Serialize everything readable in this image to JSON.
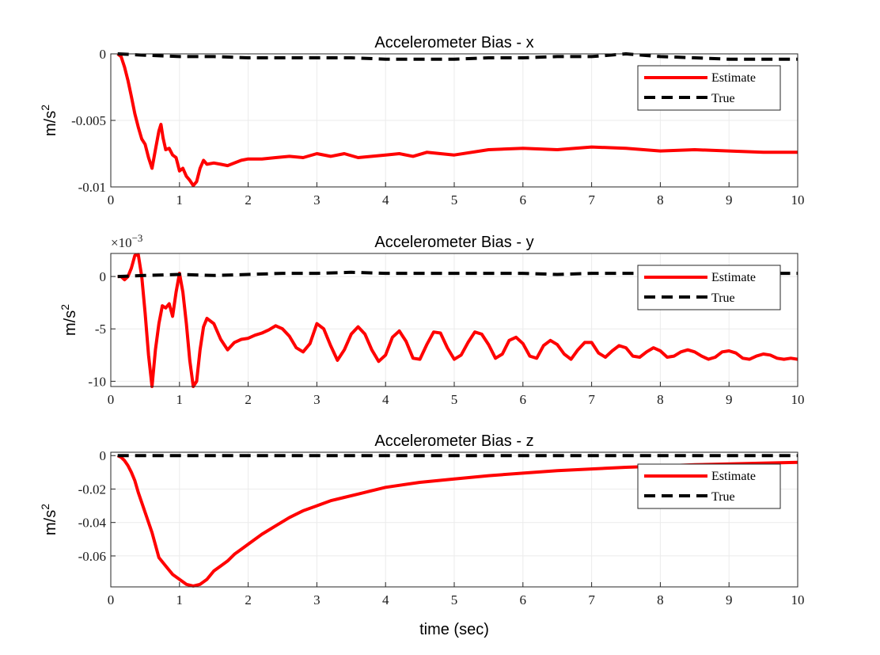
{
  "chart_data": [
    {
      "type": "line",
      "title": "Accelerometer Bias - x",
      "xlabel": "",
      "ylabel": "m/s",
      "ylabel_sup": "2",
      "xlim": [
        0,
        10
      ],
      "ylim": [
        -0.01,
        0
      ],
      "xticks": [
        0,
        1,
        2,
        3,
        4,
        5,
        6,
        7,
        8,
        9,
        10
      ],
      "xtick_labels": [
        "0",
        "1",
        "2",
        "3",
        "4",
        "5",
        "6",
        "7",
        "8",
        "9",
        "10"
      ],
      "yticks": [
        -0.01,
        -0.005,
        0
      ],
      "ytick_labels": [
        "-0.01",
        "-0.005",
        "0"
      ],
      "exponent_label": "",
      "grid": true,
      "legend_position": "top-right",
      "series": [
        {
          "name": "Estimate",
          "color": "#ff0000",
          "style": "solid",
          "x": [
            0.1,
            0.15,
            0.2,
            0.25,
            0.3,
            0.35,
            0.4,
            0.45,
            0.5,
            0.55,
            0.6,
            0.65,
            0.7,
            0.73,
            0.76,
            0.8,
            0.85,
            0.9,
            0.95,
            1.0,
            1.05,
            1.1,
            1.15,
            1.2,
            1.25,
            1.3,
            1.35,
            1.4,
            1.5,
            1.6,
            1.7,
            1.8,
            1.9,
            2.0,
            2.2,
            2.4,
            2.6,
            2.8,
            3.0,
            3.2,
            3.4,
            3.6,
            3.8,
            4.0,
            4.2,
            4.4,
            4.6,
            4.8,
            5.0,
            5.5,
            6.0,
            6.5,
            7.0,
            7.5,
            8.0,
            8.5,
            9.0,
            9.5,
            10.0
          ],
          "values": [
            0,
            -0.0002,
            -0.001,
            -0.002,
            -0.0032,
            -0.0045,
            -0.0055,
            -0.0064,
            -0.0068,
            -0.0078,
            -0.0086,
            -0.0072,
            -0.0058,
            -0.0053,
            -0.0063,
            -0.0072,
            -0.0071,
            -0.0076,
            -0.0078,
            -0.0088,
            -0.0086,
            -0.0092,
            -0.0095,
            -0.0099,
            -0.0096,
            -0.0086,
            -0.008,
            -0.0083,
            -0.0082,
            -0.0083,
            -0.0084,
            -0.0082,
            -0.008,
            -0.0079,
            -0.0079,
            -0.0078,
            -0.0077,
            -0.0078,
            -0.0075,
            -0.0077,
            -0.0075,
            -0.0078,
            -0.0077,
            -0.0076,
            -0.0075,
            -0.0077,
            -0.0074,
            -0.0075,
            -0.0076,
            -0.0072,
            -0.0071,
            -0.0072,
            -0.007,
            -0.0071,
            -0.0073,
            -0.0072,
            -0.0073,
            -0.0074,
            -0.0074
          ]
        },
        {
          "name": "True",
          "color": "#000000",
          "style": "dashed",
          "x": [
            0.1,
            0.5,
            1.0,
            1.5,
            2.0,
            2.5,
            3.0,
            3.5,
            4.0,
            4.5,
            5.0,
            5.5,
            6.0,
            6.5,
            7.0,
            7.5,
            8.0,
            8.5,
            9.0,
            9.5,
            10.0
          ],
          "values": [
            0,
            -0.0001,
            -0.0002,
            -0.0002,
            -0.0003,
            -0.0003,
            -0.0003,
            -0.0003,
            -0.0004,
            -0.0004,
            -0.0004,
            -0.0003,
            -0.0003,
            -0.0002,
            -0.0002,
            0,
            -0.0002,
            -0.0003,
            -0.0004,
            -0.0004,
            -0.0004
          ]
        }
      ]
    },
    {
      "type": "line",
      "title": "Accelerometer Bias - y",
      "xlabel": "",
      "ylabel": "m/s",
      "ylabel_sup": "2",
      "xlim": [
        0,
        10
      ],
      "ylim": [
        -10.5,
        2.2
      ],
      "xticks": [
        0,
        1,
        2,
        3,
        4,
        5,
        6,
        7,
        8,
        9,
        10
      ],
      "xtick_labels": [
        "0",
        "1",
        "2",
        "3",
        "4",
        "5",
        "6",
        "7",
        "8",
        "9",
        "10"
      ],
      "yticks": [
        -10,
        -5,
        0
      ],
      "ytick_labels": [
        "-10",
        "-5",
        "0"
      ],
      "exponent_label": "×10",
      "exponent_sup": "−3",
      "grid": true,
      "legend_position": "top-right",
      "series": [
        {
          "name": "Estimate",
          "color": "#ff0000",
          "style": "solid",
          "x": [
            0.1,
            0.15,
            0.2,
            0.25,
            0.3,
            0.35,
            0.4,
            0.45,
            0.5,
            0.55,
            0.6,
            0.65,
            0.7,
            0.75,
            0.8,
            0.85,
            0.9,
            0.95,
            1.0,
            1.05,
            1.1,
            1.15,
            1.2,
            1.25,
            1.3,
            1.35,
            1.4,
            1.5,
            1.6,
            1.7,
            1.8,
            1.9,
            2.0,
            2.1,
            2.2,
            2.3,
            2.4,
            2.5,
            2.6,
            2.7,
            2.8,
            2.9,
            3.0,
            3.1,
            3.2,
            3.3,
            3.4,
            3.5,
            3.6,
            3.7,
            3.8,
            3.9,
            4.0,
            4.1,
            4.2,
            4.3,
            4.4,
            4.5,
            4.6,
            4.7,
            4.8,
            4.9,
            5.0,
            5.1,
            5.2,
            5.3,
            5.4,
            5.5,
            5.6,
            5.7,
            5.8,
            5.9,
            6.0,
            6.1,
            6.2,
            6.3,
            6.4,
            6.5,
            6.6,
            6.7,
            6.8,
            6.9,
            7.0,
            7.1,
            7.2,
            7.3,
            7.4,
            7.5,
            7.6,
            7.7,
            7.8,
            7.9,
            8.0,
            8.1,
            8.2,
            8.3,
            8.4,
            8.5,
            8.6,
            8.7,
            8.8,
            8.9,
            9.0,
            9.1,
            9.2,
            9.3,
            9.4,
            9.5,
            9.6,
            9.7,
            9.8,
            9.9,
            10.0
          ],
          "values": [
            0,
            0,
            -0.3,
            0,
            0.8,
            2,
            2.1,
            0,
            -3.5,
            -7.5,
            -10.5,
            -7,
            -4.5,
            -2.8,
            -3,
            -2.6,
            -3.8,
            -1.5,
            0.3,
            -1.5,
            -4.5,
            -8,
            -10.5,
            -10,
            -7,
            -4.8,
            -4,
            -4.5,
            -6,
            -7,
            -6.3,
            -6,
            -5.9,
            -5.6,
            -5.4,
            -5.1,
            -4.7,
            -5,
            -5.7,
            -6.8,
            -7.2,
            -6.4,
            -4.5,
            -5,
            -6.6,
            -8,
            -7,
            -5.5,
            -4.8,
            -5.5,
            -7,
            -8.1,
            -7.5,
            -5.8,
            -5.2,
            -6.2,
            -7.8,
            -7.9,
            -6.5,
            -5.3,
            -5.4,
            -6.8,
            -7.9,
            -7.5,
            -6.3,
            -5.3,
            -5.5,
            -6.5,
            -7.8,
            -7.4,
            -6.1,
            -5.8,
            -6.4,
            -7.6,
            -7.8,
            -6.6,
            -6.1,
            -6.5,
            -7.4,
            -7.9,
            -7,
            -6.3,
            -6.3,
            -7.3,
            -7.7,
            -7.1,
            -6.6,
            -6.8,
            -7.6,
            -7.7,
            -7.2,
            -6.8,
            -7.1,
            -7.7,
            -7.6,
            -7.2,
            -7,
            -7.2,
            -7.6,
            -7.9,
            -7.7,
            -7.2,
            -7.1,
            -7.3,
            -7.8,
            -7.9,
            -7.6,
            -7.4,
            -7.5,
            -7.8,
            -7.9,
            -7.8,
            -7.9
          ],
          "_note": "values scaled by 1e-3"
        },
        {
          "name": "True",
          "color": "#000000",
          "style": "dashed",
          "x": [
            0.1,
            0.5,
            1.0,
            1.5,
            2.0,
            2.5,
            3.0,
            3.5,
            4.0,
            4.5,
            5.0,
            5.5,
            6.0,
            6.5,
            7.0,
            7.5,
            8.0,
            8.5,
            9.0,
            9.5,
            10.0
          ],
          "values": [
            0,
            0.1,
            0.2,
            0.1,
            0.2,
            0.3,
            0.3,
            0.4,
            0.3,
            0.3,
            0.3,
            0.3,
            0.3,
            0.2,
            0.3,
            0.3,
            0.3,
            0.3,
            0.3,
            0.3,
            0.3
          ]
        }
      ]
    },
    {
      "type": "line",
      "title": "Accelerometer Bias - z",
      "xlabel": "time (sec)",
      "ylabel": "m/s",
      "ylabel_sup": "2",
      "xlim": [
        0,
        10
      ],
      "ylim": [
        -0.0785,
        0.002
      ],
      "xticks": [
        0,
        1,
        2,
        3,
        4,
        5,
        6,
        7,
        8,
        9,
        10
      ],
      "xtick_labels": [
        "0",
        "1",
        "2",
        "3",
        "4",
        "5",
        "6",
        "7",
        "8",
        "9",
        "10"
      ],
      "yticks": [
        -0.06,
        -0.04,
        -0.02,
        0
      ],
      "ytick_labels": [
        "-0.06",
        "-0.04",
        "-0.02",
        "0"
      ],
      "exponent_label": "",
      "grid": true,
      "legend_position": "top-right",
      "series": [
        {
          "name": "Estimate",
          "color": "#ff0000",
          "style": "solid",
          "x": [
            0.1,
            0.15,
            0.2,
            0.25,
            0.3,
            0.35,
            0.4,
            0.5,
            0.6,
            0.7,
            0.8,
            0.9,
            1.0,
            1.1,
            1.2,
            1.3,
            1.4,
            1.5,
            1.6,
            1.7,
            1.8,
            1.9,
            2.0,
            2.2,
            2.4,
            2.6,
            2.8,
            3.0,
            3.2,
            3.4,
            3.6,
            3.8,
            4.0,
            4.5,
            5.0,
            5.5,
            6.0,
            6.5,
            7.0,
            7.5,
            8.0,
            8.5,
            9.0,
            9.5,
            10.0
          ],
          "values": [
            0,
            -0.001,
            -0.003,
            -0.006,
            -0.01,
            -0.015,
            -0.022,
            -0.034,
            -0.046,
            -0.061,
            -0.066,
            -0.071,
            -0.074,
            -0.077,
            -0.078,
            -0.077,
            -0.074,
            -0.069,
            -0.066,
            -0.063,
            -0.059,
            -0.056,
            -0.053,
            -0.047,
            -0.042,
            -0.037,
            -0.033,
            -0.03,
            -0.027,
            -0.025,
            -0.023,
            -0.021,
            -0.019,
            -0.016,
            -0.014,
            -0.012,
            -0.0105,
            -0.009,
            -0.008,
            -0.007,
            -0.0063,
            -0.0055,
            -0.005,
            -0.0045,
            -0.004
          ]
        },
        {
          "name": "True",
          "color": "#000000",
          "style": "dashed",
          "x": [
            0.1,
            1,
            2,
            3,
            4,
            5,
            6,
            7,
            8,
            9,
            10
          ],
          "values": [
            0,
            0,
            0,
            0,
            0,
            0,
            0,
            0,
            0,
            0,
            0
          ]
        }
      ]
    }
  ]
}
